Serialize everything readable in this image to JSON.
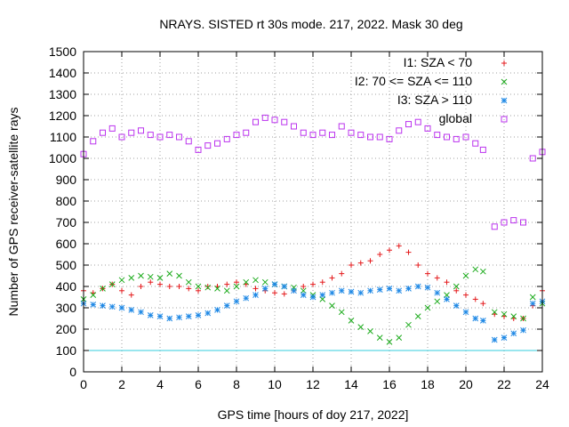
{
  "chart_data": {
    "type": "scatter",
    "title": "NRAYS. SISTED rt 30s mode. 217, 2022. Mask 30 deg",
    "xlabel": "GPS time [hours of doy 217, 2022]",
    "ylabel": "Number of GPS receiver-satellite rays",
    "xlim": [
      0,
      24
    ],
    "ylim": [
      0,
      1500
    ],
    "x_ticks": [
      0,
      2,
      4,
      6,
      8,
      10,
      12,
      14,
      16,
      18,
      20,
      22,
      24
    ],
    "y_ticks": [
      0,
      100,
      200,
      300,
      400,
      500,
      600,
      700,
      800,
      900,
      1000,
      1100,
      1200,
      1300,
      1400,
      1500
    ],
    "x_tick_labels": [
      "0",
      "2",
      "4",
      "6",
      "8",
      "10",
      "12",
      "14",
      "16",
      "18",
      "20",
      "22",
      "24"
    ],
    "y_tick_labels": [
      "0",
      "100",
      "200",
      "300",
      "400",
      "500",
      "600",
      "700",
      "800",
      "900",
      "1000",
      "1100",
      "1200",
      "1300",
      "1400",
      "1500"
    ],
    "grid": true,
    "legend_position": "top-right",
    "reference_line": {
      "y": 100,
      "color": "#33ccdd"
    },
    "series": [
      {
        "name": "I1: SZA < 70",
        "marker": "+",
        "color": "#e41a1c",
        "x": [
          0,
          0.5,
          1,
          1.5,
          2,
          2.5,
          3,
          3.5,
          4,
          4.5,
          5,
          5.5,
          6,
          6.5,
          7,
          7.5,
          8,
          8.5,
          9,
          9.5,
          10,
          10.5,
          11,
          11.5,
          12,
          12.5,
          13,
          13.5,
          14,
          14.5,
          15,
          15.5,
          16,
          16.5,
          17,
          17.5,
          18,
          18.5,
          19,
          19.5,
          20,
          20.5,
          20.9,
          21.5,
          22,
          22.5,
          23,
          23.5,
          24
        ],
        "values": [
          380,
          370,
          390,
          410,
          380,
          360,
          400,
          420,
          410,
          400,
          400,
          390,
          380,
          400,
          400,
          410,
          420,
          410,
          390,
          380,
          370,
          365,
          380,
          400,
          410,
          420,
          440,
          460,
          500,
          510,
          520,
          550,
          570,
          590,
          560,
          500,
          460,
          440,
          420,
          380,
          360,
          340,
          320,
          270,
          260,
          250,
          250,
          310,
          380
        ]
      },
      {
        "name": "I2: 70 <= SZA <= 110",
        "marker": "x",
        "color": "#1aaa1a",
        "x": [
          0,
          0.5,
          1,
          1.5,
          2,
          2.5,
          3,
          3.5,
          4,
          4.5,
          5,
          5.5,
          6,
          6.5,
          7,
          7.5,
          8,
          8.5,
          9,
          9.5,
          10,
          10.5,
          11,
          11.5,
          12,
          12.5,
          13,
          13.5,
          14,
          14.5,
          15,
          15.5,
          16,
          16.5,
          17,
          17.5,
          18,
          18.5,
          19,
          19.5,
          20,
          20.5,
          20.9,
          21.5,
          22,
          22.5,
          23,
          23.5,
          24
        ],
        "values": [
          340,
          360,
          390,
          410,
          430,
          440,
          450,
          445,
          440,
          460,
          450,
          420,
          400,
          395,
          390,
          380,
          400,
          420,
          430,
          420,
          410,
          400,
          395,
          380,
          360,
          340,
          310,
          280,
          240,
          210,
          190,
          160,
          140,
          160,
          220,
          260,
          300,
          330,
          360,
          400,
          450,
          480,
          470,
          280,
          270,
          260,
          250,
          350,
          320
        ]
      },
      {
        "name": "I3: SZA > 110",
        "marker": "*",
        "color": "#1e88e5",
        "x": [
          0,
          0.5,
          1,
          1.5,
          2,
          2.5,
          3,
          3.5,
          4,
          4.5,
          5,
          5.5,
          6,
          6.5,
          7,
          7.5,
          8,
          8.5,
          9,
          9.5,
          10,
          10.5,
          11,
          11.5,
          12,
          12.5,
          13,
          13.5,
          14,
          14.5,
          15,
          15.5,
          16,
          16.5,
          17,
          17.5,
          18,
          18.5,
          19,
          19.5,
          20,
          20.5,
          20.9,
          21.5,
          22,
          22.5,
          23,
          23.5,
          24
        ],
        "values": [
          320,
          315,
          310,
          305,
          300,
          290,
          280,
          265,
          260,
          250,
          255,
          260,
          265,
          275,
          290,
          310,
          330,
          345,
          360,
          390,
          410,
          400,
          380,
          360,
          350,
          360,
          370,
          380,
          375,
          370,
          380,
          385,
          390,
          380,
          390,
          400,
          395,
          370,
          340,
          310,
          280,
          250,
          240,
          150,
          160,
          180,
          195,
          320,
          330
        ]
      },
      {
        "name": "global",
        "marker": "square",
        "color": "#bb33ee",
        "x": [
          0,
          0.5,
          1,
          1.5,
          2,
          2.5,
          3,
          3.5,
          4,
          4.5,
          5,
          5.5,
          6,
          6.5,
          7,
          7.5,
          8,
          8.5,
          9,
          9.5,
          10,
          10.5,
          11,
          11.5,
          12,
          12.5,
          13,
          13.5,
          14,
          14.5,
          15,
          15.5,
          16,
          16.5,
          17,
          17.5,
          18,
          18.5,
          19,
          19.5,
          20,
          20.5,
          20.9,
          21.5,
          22,
          22.5,
          23,
          23.5,
          24
        ],
        "values": [
          1020,
          1080,
          1120,
          1140,
          1100,
          1120,
          1130,
          1110,
          1100,
          1110,
          1100,
          1080,
          1040,
          1060,
          1070,
          1090,
          1110,
          1120,
          1170,
          1190,
          1180,
          1170,
          1150,
          1120,
          1110,
          1120,
          1110,
          1150,
          1120,
          1110,
          1100,
          1100,
          1090,
          1130,
          1160,
          1170,
          1140,
          1110,
          1100,
          1090,
          1100,
          1070,
          1040,
          680,
          700,
          710,
          700,
          1000,
          1030
        ]
      }
    ]
  }
}
